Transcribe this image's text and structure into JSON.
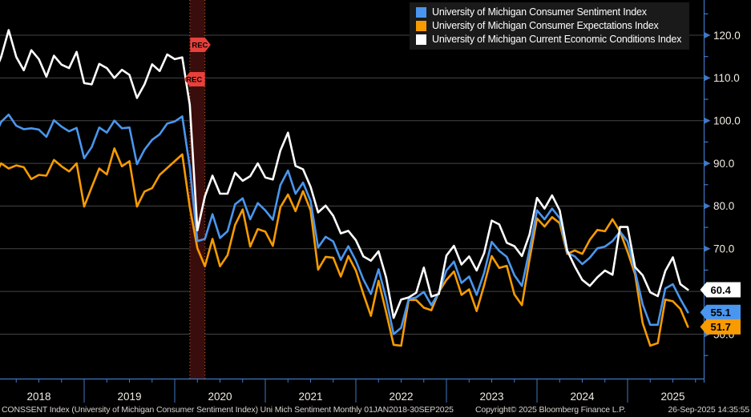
{
  "chart_data": {
    "type": "line",
    "title": "",
    "frequency": "monthly",
    "x_start": "2018-01",
    "x_end": "2025-09",
    "x_tick_labels": [
      "2018",
      "2019",
      "2020",
      "2021",
      "2022",
      "2023",
      "2024",
      "2025"
    ],
    "y_ticks": [
      50,
      60,
      70,
      80,
      90,
      100,
      110,
      120
    ],
    "y_tick_labels": [
      "50.0",
      "60.0",
      "70.0",
      "80.0",
      "90.0",
      "100.0",
      "110.0",
      "120.0"
    ],
    "ylim": [
      43,
      124
    ],
    "grid": "horizontal",
    "legend_position": "top-right",
    "series": [
      {
        "name": "University of Michigan Consumer Sentiment Index",
        "color": "#4a96ee",
        "last_label": "55.1",
        "values": [
          95.7,
          99.7,
          101.4,
          98.8,
          98.0,
          98.2,
          97.9,
          96.2,
          100.1,
          98.6,
          97.5,
          98.3,
          91.2,
          93.8,
          98.4,
          97.2,
          100.0,
          98.2,
          98.4,
          89.8,
          93.2,
          95.5,
          96.8,
          99.3,
          99.8,
          101.0,
          89.1,
          71.8,
          72.3,
          78.1,
          72.5,
          74.1,
          80.4,
          81.8,
          76.9,
          80.7,
          79.0,
          76.8,
          84.9,
          88.3,
          82.9,
          85.5,
          81.2,
          70.3,
          72.8,
          71.7,
          67.4,
          70.6,
          67.2,
          62.8,
          59.4,
          65.2,
          58.4,
          50.0,
          51.5,
          58.2,
          58.6,
          59.9,
          56.8,
          59.7,
          64.9,
          67.0,
          62.0,
          63.5,
          59.2,
          64.4,
          71.6,
          69.5,
          68.1,
          63.8,
          61.3,
          69.7,
          79.0,
          76.9,
          79.4,
          77.2,
          69.1,
          68.2,
          66.4,
          67.9,
          70.1,
          70.5,
          71.8,
          74.0,
          71.7,
          64.7,
          57.0,
          52.2,
          52.2,
          60.7,
          61.7,
          58.2,
          55.1
        ]
      },
      {
        "name": "University of Michigan Consumer Expectations Index",
        "color": "#f79b00",
        "last_label": "51.7",
        "values": [
          86.3,
          90.0,
          88.8,
          89.5,
          89.1,
          86.3,
          87.3,
          87.1,
          90.8,
          89.3,
          88.1,
          90.0,
          79.9,
          84.4,
          88.8,
          87.4,
          93.5,
          89.3,
          90.5,
          79.9,
          83.4,
          84.2,
          87.3,
          88.9,
          90.5,
          92.1,
          79.7,
          70.1,
          65.9,
          72.3,
          65.9,
          68.5,
          75.6,
          79.2,
          70.5,
          74.6,
          74.0,
          70.7,
          79.7,
          82.7,
          78.8,
          83.5,
          79.0,
          65.1,
          68.1,
          67.9,
          63.5,
          68.3,
          64.9,
          59.4,
          54.3,
          62.5,
          55.2,
          47.5,
          47.3,
          58.0,
          58.0,
          56.2,
          55.6,
          59.9,
          62.7,
          64.7,
          59.2,
          60.5,
          55.4,
          61.5,
          68.3,
          65.5,
          66.0,
          59.3,
          56.8,
          67.4,
          77.1,
          75.2,
          77.4,
          76.0,
          68.8,
          69.6,
          68.8,
          72.1,
          74.4,
          74.1,
          76.9,
          74.0,
          69.3,
          64.0,
          52.6,
          47.3,
          47.9,
          58.1,
          57.7,
          55.9,
          51.7
        ]
      },
      {
        "name": "University of Michigan Current Economic Conditions Index",
        "color": "#ffffff",
        "last_label": "60.4",
        "values": [
          110.5,
          114.9,
          121.2,
          114.9,
          111.8,
          116.5,
          114.4,
          110.3,
          115.2,
          113.1,
          112.3,
          116.1,
          108.8,
          108.5,
          113.3,
          112.3,
          110.0,
          111.9,
          110.7,
          105.3,
          108.5,
          113.2,
          111.6,
          115.5,
          114.4,
          114.8,
          103.7,
          74.3,
          82.3,
          87.1,
          82.9,
          82.9,
          87.8,
          85.9,
          87.0,
          90.0,
          86.7,
          86.2,
          93.0,
          97.2,
          89.4,
          88.6,
          84.5,
          78.5,
          80.1,
          77.7,
          73.6,
          74.2,
          72.0,
          68.2,
          67.2,
          69.4,
          63.3,
          53.8,
          58.1,
          58.6,
          59.7,
          65.6,
          58.8,
          59.4,
          68.4,
          70.7,
          66.3,
          68.2,
          64.9,
          69.0,
          76.6,
          75.7,
          71.4,
          70.6,
          68.3,
          73.3,
          81.9,
          79.4,
          82.5,
          79.0,
          69.6,
          65.9,
          62.7,
          61.3,
          63.3,
          64.9,
          63.9,
          75.1,
          75.1,
          65.7,
          63.8,
          59.8,
          58.9,
          64.8,
          68.0,
          61.7,
          60.4
        ]
      }
    ],
    "recession_band": {
      "label": "REC",
      "start": "2020-03",
      "end": "2020-05"
    },
    "colors": {
      "background": "#000000",
      "axis": "#3e79c6",
      "grid": "#444444",
      "tick_text": "#f0ece2",
      "band_fill": "#3a0d0d",
      "band_edge": "#c06818",
      "rec_badge": "#e8403a",
      "badge_text": "#000000"
    }
  },
  "footer": {
    "left": "CONSSENT Index (University of Michigan Consumer Sentiment Index) Uni Mich Sentiment  Monthly 01JAN2018-30SEP2025",
    "copyright": "Copyright© 2025 Bloomberg Finance L.P.",
    "timestamp": "26-Sep-2025 14:35:55"
  }
}
